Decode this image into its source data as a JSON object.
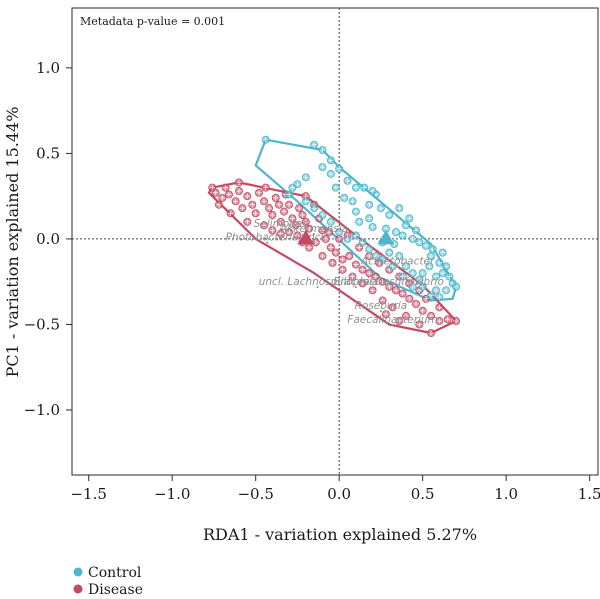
{
  "chart_data": {
    "type": "scatter",
    "title": "",
    "xlabel": "RDA1 - variation explained 5.27%",
    "ylabel": "PC1 - variation explained 15.44%",
    "xlim": [
      -1.6,
      1.55
    ],
    "ylim": [
      -1.38,
      1.35
    ],
    "xticks": [
      -1.5,
      -1.0,
      -0.5,
      0.0,
      0.5,
      1.0,
      1.5
    ],
    "yticks": [
      -1.0,
      -0.5,
      0.0,
      0.5,
      1.0
    ],
    "xtick_labels": [
      "−1.5",
      "−1.0",
      "−0.5",
      "0.0",
      "0.5",
      "1.0",
      "1.5"
    ],
    "ytick_labels": [
      "−1.0",
      "−0.5",
      "0.0",
      "0.5",
      "1.0"
    ],
    "annotation": "Metadata p-value = 0.001",
    "legend": {
      "placement": "bottom-left"
    },
    "series": [
      {
        "name": "Control",
        "color": "#4bb6cc",
        "centroid": [
          0.28,
          0.0
        ],
        "hull": [
          [
            -0.44,
            0.58
          ],
          [
            -0.1,
            0.52
          ],
          [
            0.0,
            0.42
          ],
          [
            0.55,
            -0.03
          ],
          [
            0.7,
            -0.28
          ],
          [
            0.68,
            -0.35
          ],
          [
            0.55,
            -0.36
          ],
          [
            0.25,
            -0.23
          ],
          [
            -0.25,
            0.22
          ],
          [
            -0.5,
            0.43
          ]
        ],
        "points": [
          [
            -0.44,
            0.58
          ],
          [
            -0.15,
            0.55
          ],
          [
            -0.1,
            0.52
          ],
          [
            -0.05,
            0.46
          ],
          [
            -0.1,
            0.42
          ],
          [
            -0.05,
            0.38
          ],
          [
            -0.2,
            0.36
          ],
          [
            -0.25,
            0.32
          ],
          [
            -0.28,
            0.3
          ],
          [
            -0.3,
            0.26
          ],
          [
            0.0,
            0.41
          ],
          [
            0.05,
            0.34
          ],
          [
            0.1,
            0.3
          ],
          [
            0.15,
            0.3
          ],
          [
            0.08,
            0.22
          ],
          [
            0.18,
            0.2
          ],
          [
            0.22,
            0.26
          ],
          [
            0.25,
            0.18
          ],
          [
            0.3,
            0.14
          ],
          [
            0.18,
            0.12
          ],
          [
            0.12,
            0.1
          ],
          [
            0.2,
            0.07
          ],
          [
            0.28,
            0.06
          ],
          [
            0.34,
            0.04
          ],
          [
            0.4,
            0.08
          ],
          [
            0.38,
            0.02
          ],
          [
            0.44,
            0.0
          ],
          [
            0.48,
            -0.02
          ],
          [
            0.52,
            -0.04
          ],
          [
            0.56,
            -0.06
          ],
          [
            0.55,
            -0.1
          ],
          [
            0.6,
            -0.14
          ],
          [
            0.64,
            -0.16
          ],
          [
            0.62,
            -0.2
          ],
          [
            0.66,
            -0.22
          ],
          [
            0.68,
            -0.26
          ],
          [
            0.7,
            -0.28
          ],
          [
            0.64,
            -0.3
          ],
          [
            0.58,
            -0.3
          ],
          [
            0.6,
            -0.34
          ],
          [
            0.55,
            -0.33
          ],
          [
            0.5,
            -0.28
          ],
          [
            0.48,
            -0.24
          ],
          [
            0.44,
            -0.2
          ],
          [
            0.4,
            -0.16
          ],
          [
            0.36,
            -0.1
          ],
          [
            0.3,
            -0.08
          ],
          [
            0.26,
            -0.12
          ],
          [
            0.22,
            -0.1
          ],
          [
            0.18,
            -0.06
          ],
          [
            0.14,
            -0.02
          ],
          [
            0.1,
            0.02
          ],
          [
            0.05,
            0.0
          ],
          [
            0.0,
            0.04
          ],
          [
            -0.05,
            0.1
          ],
          [
            -0.1,
            0.14
          ],
          [
            -0.15,
            0.18
          ],
          [
            -0.2,
            0.22
          ],
          [
            0.32,
            -0.16
          ],
          [
            0.38,
            -0.22
          ],
          [
            0.44,
            -0.28
          ],
          [
            0.5,
            -0.2
          ],
          [
            0.54,
            -0.16
          ],
          [
            0.62,
            -0.08
          ],
          [
            0.36,
            0.18
          ],
          [
            0.42,
            0.12
          ],
          [
            0.46,
            0.05
          ],
          [
            0.2,
            0.28
          ],
          [
            0.1,
            0.16
          ],
          [
            0.03,
            0.24
          ],
          [
            -0.02,
            0.3
          ],
          [
            0.26,
            -0.02
          ],
          [
            0.33,
            -0.03
          ],
          [
            0.58,
            -0.22
          ]
        ]
      },
      {
        "name": "Disease",
        "color": "#c44a62",
        "centroid": [
          -0.2,
          0.0
        ],
        "hull": [
          [
            -0.76,
            0.3
          ],
          [
            -0.6,
            0.33
          ],
          [
            -0.2,
            0.25
          ],
          [
            0.1,
            0.02
          ],
          [
            0.5,
            -0.27
          ],
          [
            0.7,
            -0.48
          ],
          [
            0.55,
            -0.55
          ],
          [
            0.3,
            -0.5
          ],
          [
            -0.15,
            -0.2
          ],
          [
            -0.5,
            0.0
          ],
          [
            -0.78,
            0.27
          ]
        ],
        "points": [
          [
            -0.76,
            0.3
          ],
          [
            -0.74,
            0.27
          ],
          [
            -0.7,
            0.24
          ],
          [
            -0.72,
            0.2
          ],
          [
            -0.66,
            0.26
          ],
          [
            -0.6,
            0.33
          ],
          [
            -0.6,
            0.28
          ],
          [
            -0.62,
            0.22
          ],
          [
            -0.58,
            0.18
          ],
          [
            -0.55,
            0.25
          ],
          [
            -0.52,
            0.2
          ],
          [
            -0.5,
            0.15
          ],
          [
            -0.48,
            0.27
          ],
          [
            -0.45,
            0.22
          ],
          [
            -0.42,
            0.18
          ],
          [
            -0.4,
            0.14
          ],
          [
            -0.38,
            0.24
          ],
          [
            -0.36,
            0.2
          ],
          [
            -0.35,
            0.1
          ],
          [
            -0.33,
            0.16
          ],
          [
            -0.3,
            0.2
          ],
          [
            -0.28,
            0.12
          ],
          [
            -0.26,
            0.08
          ],
          [
            -0.24,
            0.18
          ],
          [
            -0.22,
            0.14
          ],
          [
            -0.2,
            0.1
          ],
          [
            -0.18,
            0.06
          ],
          [
            -0.2,
            0.25
          ],
          [
            -0.15,
            0.2
          ],
          [
            -0.12,
            0.12
          ],
          [
            -0.1,
            0.05
          ],
          [
            -0.08,
            0.0
          ],
          [
            -0.14,
            -0.02
          ],
          [
            -0.18,
            -0.05
          ],
          [
            -0.22,
            -0.02
          ],
          [
            -0.25,
            0.02
          ],
          [
            -0.3,
            0.04
          ],
          [
            -0.35,
            0.03
          ],
          [
            -0.4,
            0.05
          ],
          [
            -0.45,
            0.08
          ],
          [
            -0.55,
            0.1
          ],
          [
            -0.65,
            0.15
          ],
          [
            -0.05,
            -0.05
          ],
          [
            -0.02,
            -0.08
          ],
          [
            0.02,
            -0.12
          ],
          [
            0.06,
            -0.1
          ],
          [
            0.1,
            -0.15
          ],
          [
            0.14,
            -0.18
          ],
          [
            0.18,
            -0.2
          ],
          [
            0.22,
            -0.22
          ],
          [
            0.26,
            -0.25
          ],
          [
            0.3,
            -0.28
          ],
          [
            0.34,
            -0.3
          ],
          [
            0.38,
            -0.32
          ],
          [
            0.42,
            -0.35
          ],
          [
            0.46,
            -0.38
          ],
          [
            0.5,
            -0.42
          ],
          [
            0.55,
            -0.45
          ],
          [
            0.6,
            -0.48
          ],
          [
            0.65,
            -0.47
          ],
          [
            0.7,
            -0.48
          ],
          [
            0.55,
            -0.55
          ],
          [
            0.48,
            -0.5
          ],
          [
            0.4,
            -0.45
          ],
          [
            0.32,
            -0.4
          ],
          [
            0.26,
            -0.36
          ],
          [
            0.2,
            -0.3
          ],
          [
            0.14,
            -0.26
          ],
          [
            0.08,
            -0.22
          ],
          [
            0.02,
            -0.18
          ],
          [
            -0.04,
            -0.14
          ],
          [
            -0.1,
            -0.1
          ],
          [
            0.12,
            -0.05
          ],
          [
            0.18,
            -0.1
          ],
          [
            0.24,
            -0.14
          ],
          [
            0.3,
            -0.18
          ],
          [
            0.36,
            -0.22
          ],
          [
            0.42,
            -0.26
          ],
          [
            0.48,
            -0.3
          ],
          [
            0.05,
            0.02
          ],
          [
            0.0,
            0.0
          ],
          [
            -0.06,
            0.04
          ],
          [
            0.28,
            -0.44
          ],
          [
            0.36,
            -0.48
          ],
          [
            0.6,
            -0.4
          ],
          [
            0.52,
            -0.35
          ],
          [
            -0.32,
            0.26
          ],
          [
            -0.44,
            0.3
          ],
          [
            -0.68,
            0.3
          ]
        ]
      }
    ],
    "biplot_labels": [
      {
        "text": "Selimonas",
        "x": -0.35,
        "y": 0.07
      },
      {
        "text": "Akkermansia",
        "x": -0.15,
        "y": 0.04
      },
      {
        "text": "Photobacterium",
        "x": -0.43,
        "y": -0.01
      },
      {
        "text": "uncl.",
        "x": -0.15,
        "y": -0.01
      },
      {
        "text": "Acinetobacter",
        "x": 0.35,
        "y": -0.15
      },
      {
        "text": "uncl. Lachnospiraceae",
        "x": -0.13,
        "y": -0.27
      },
      {
        "text": "Bilophila",
        "x": 0.1,
        "y": -0.27
      },
      {
        "text": "Desulfovibrio",
        "x": 0.42,
        "y": -0.27
      },
      {
        "text": "Roseburia",
        "x": 0.25,
        "y": -0.41
      },
      {
        "text": "Faecalibacterium",
        "x": 0.32,
        "y": -0.49
      }
    ]
  }
}
